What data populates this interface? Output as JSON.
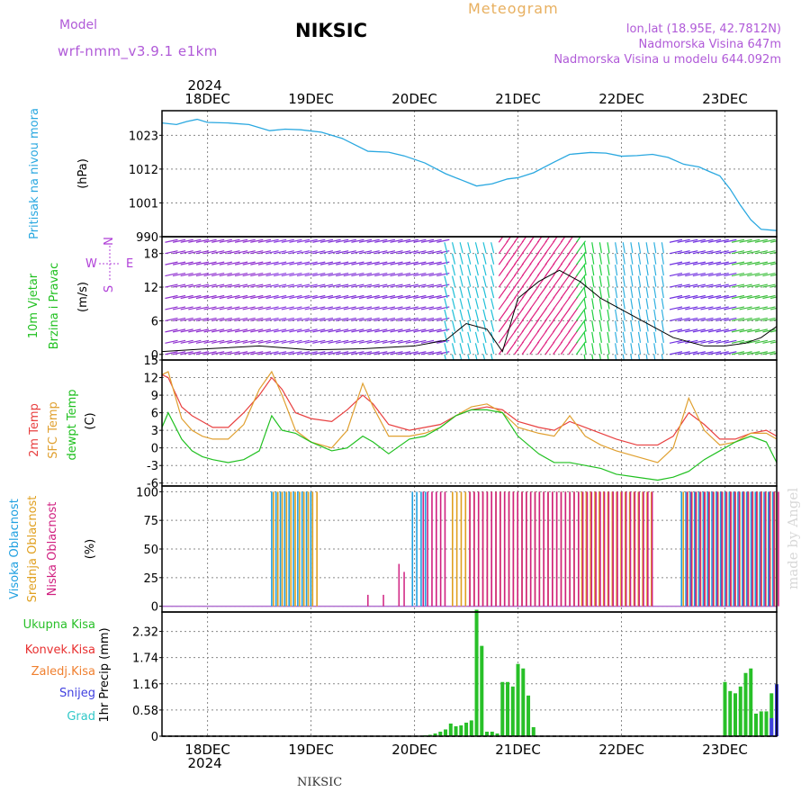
{
  "header": {
    "model_label": "Model",
    "model_name": "wrf-nmm_v3.9.1  e1km",
    "station": "NIKSIC",
    "kind": "Meteogram",
    "lonlat": "lon,lat (18.95E, 42.7812N)",
    "elevation": "Nadmorska Visina 647m",
    "elevation_model": "Nadmorska Visina u modelu 644.092m",
    "footer_station": "NIKSIC",
    "credit": "made by Angel"
  },
  "dates": {
    "year": "2024",
    "labels": [
      "18DEC",
      "19DEC",
      "20DEC",
      "21DEC",
      "22DEC",
      "23DEC"
    ]
  },
  "colors": {
    "pressure": "#2aa8e0",
    "temp2m": "#e84040",
    "sfctemp": "#e0a030",
    "dewpt": "#20c020",
    "high_cloud": "#20a0e0",
    "mid_cloud": "#e0a020",
    "low_cloud": "#d02080",
    "precip": "#28c028",
    "conv": "#e83030",
    "frz": "#f08030",
    "snow": "#4040e0",
    "grad": "#30c8c8",
    "wind_axis": "#b040d8"
  },
  "panels": {
    "pressure": {
      "l1": "Pritisak na nivou mora",
      "l2": "(hPa)"
    },
    "wind": {
      "l1": "10m Vjetar",
      "l2": "Brzina i Pravac",
      "l3": "(m/s)",
      "compass_n": "N",
      "compass_s": "S",
      "compass_e": "E",
      "compass_w": "W"
    },
    "temp": {
      "l1": "2m Temp",
      "l2": "SFC Temp",
      "l3": "dewpt Temp",
      "l4": "(C)"
    },
    "cloud": {
      "l1": "Visoka Oblacnost",
      "l2": "Srednja Oblacnost",
      "l3": "Niska  Oblacnost",
      "l4": "(%)"
    },
    "precip": {
      "l1": "Ukupna  Kisa",
      "l2": "Konvek.Kisa",
      "l3": "Zaledj.Kisa",
      "l4": "Snijeg",
      "l5": "Grad",
      "l6": "1hr Precip (mm)"
    }
  },
  "chart_data": [
    {
      "type": "line",
      "title": "Pritisak na nivou mora",
      "ylabel": "(hPa)",
      "ylim": [
        990,
        1031
      ],
      "yticks": [
        990,
        1001,
        1012,
        1023
      ],
      "xlim_days": [
        17.56,
        23.5
      ],
      "x": [
        17.56,
        17.7,
        17.8,
        17.9,
        18.0,
        18.2,
        18.4,
        18.6,
        18.75,
        18.9,
        19.1,
        19.3,
        19.55,
        19.75,
        19.9,
        20.1,
        20.3,
        20.45,
        20.6,
        20.75,
        20.9,
        21.0,
        21.15,
        21.35,
        21.5,
        21.7,
        21.85,
        22.0,
        22.15,
        22.3,
        22.45,
        22.6,
        22.75,
        22.85,
        22.95,
        23.05,
        23.15,
        23.25,
        23.35,
        23.5
      ],
      "series": [
        {
          "values": [
            1027,
            1026.5,
            1027.5,
            1028.2,
            1027.2,
            1027,
            1026.5,
            1024.5,
            1025,
            1024.8,
            1024,
            1022,
            1017.8,
            1017.5,
            1016.3,
            1014,
            1010.5,
            1008.5,
            1006.5,
            1007.2,
            1008.8,
            1009.2,
            1010.8,
            1014.3,
            1016.8,
            1017.4,
            1017.2,
            1016.2,
            1016.4,
            1016.8,
            1015.8,
            1013.6,
            1012.7,
            1011.2,
            1009.8,
            1005.5,
            1000.2,
            995.5,
            992.4,
            992
          ]
        }
      ]
    },
    {
      "type": "line",
      "title": "10m Vjetar Brzina i Pravac",
      "ylabel": "(m/s)",
      "ylim": [
        -1,
        21
      ],
      "yticks": [
        0,
        6,
        12,
        18
      ],
      "x": [
        17.56,
        18.0,
        18.5,
        19.0,
        19.5,
        20.0,
        20.3,
        20.5,
        20.7,
        20.85,
        21.0,
        21.2,
        21.4,
        21.6,
        21.8,
        22.0,
        22.2,
        22.5,
        22.8,
        23.0,
        23.2,
        23.35,
        23.5
      ],
      "series": [
        {
          "name": "speed",
          "values": [
            0.5,
            1.0,
            1.5,
            0.8,
            1.0,
            1.5,
            2.5,
            5.5,
            4.5,
            0.5,
            10,
            13,
            15,
            13,
            10,
            8,
            6,
            3,
            1.5,
            1.5,
            2.0,
            3.0,
            5.0
          ]
        }
      ],
      "barb_levels": [
        0,
        2,
        4,
        6,
        8,
        10,
        12,
        14,
        16,
        18,
        20
      ]
    },
    {
      "type": "line",
      "title": "2m Temp / SFC Temp / dewpt Temp",
      "ylabel": "(C)",
      "ylim": [
        -6.5,
        15
      ],
      "yticks": [
        -6,
        -3,
        0,
        3,
        6,
        9,
        12,
        15
      ],
      "x": [
        17.56,
        17.62,
        17.75,
        17.85,
        17.95,
        18.05,
        18.2,
        18.35,
        18.5,
        18.62,
        18.72,
        18.85,
        19.0,
        19.2,
        19.35,
        19.5,
        19.6,
        19.75,
        19.95,
        20.1,
        20.25,
        20.4,
        20.55,
        20.7,
        20.85,
        21.0,
        21.2,
        21.35,
        21.5,
        21.65,
        21.8,
        21.95,
        22.15,
        22.35,
        22.5,
        22.65,
        22.8,
        22.95,
        23.1,
        23.25,
        23.4,
        23.5
      ],
      "series": [
        {
          "name": "2m Temp",
          "values": [
            12.5,
            12,
            7,
            5.5,
            4.5,
            3.5,
            3.5,
            6,
            9,
            12,
            10,
            6,
            5,
            4.5,
            6.5,
            9,
            7.5,
            4,
            3,
            3.5,
            4,
            5.5,
            6.5,
            7,
            6.5,
            4.5,
            3.5,
            3,
            4.5,
            3.5,
            2.5,
            1.5,
            0.5,
            0.5,
            2,
            6,
            4,
            1.5,
            1.5,
            2.5,
            3,
            2
          ]
        },
        {
          "name": "SFC Temp",
          "values": [
            12.5,
            13,
            5,
            3,
            2,
            1.5,
            1.5,
            4,
            10,
            13,
            9,
            3,
            1,
            0,
            3,
            11,
            7,
            2,
            2,
            2.5,
            3.5,
            5.5,
            7,
            7.5,
            6,
            3.5,
            2.5,
            2,
            5.5,
            2,
            0.5,
            -0.5,
            -1.5,
            -2.5,
            0,
            8.5,
            3,
            0.5,
            1,
            2.5,
            2.5,
            1.5
          ]
        },
        {
          "name": "dewpt Temp",
          "values": [
            3.5,
            6,
            1.5,
            -0.5,
            -1.5,
            -2,
            -2.5,
            -2,
            -0.5,
            5.5,
            3,
            2.5,
            1,
            -0.5,
            0,
            2,
            1,
            -1,
            1.5,
            2,
            3.5,
            5.5,
            6.5,
            6.5,
            6,
            2,
            -1,
            -2.5,
            -2.5,
            -3,
            -3.5,
            -4.5,
            -5,
            -5.5,
            -5,
            -4,
            -2,
            -0.5,
            1,
            2,
            1,
            -2.5
          ]
        }
      ]
    },
    {
      "type": "bar",
      "title": "Visoka / Srednja / Niska Oblacnost",
      "ylabel": "(%)",
      "ylim": [
        -5,
        105
      ],
      "yticks": [
        0,
        25,
        50,
        75,
        100
      ],
      "series": [
        {
          "name": "Visoka Oblacnost",
          "ranges": [
            [
              18.62,
              19.0,
              100
            ],
            [
              19.98,
              20.12,
              100
            ],
            [
              22.58,
              23.5,
              100
            ]
          ]
        },
        {
          "name": "Srednja Oblacnost",
          "ranges": [
            [
              18.62,
              19.05,
              100
            ],
            [
              20.35,
              21.6,
              100
            ],
            [
              21.6,
              22.3,
              100
            ],
            [
              22.58,
              23.5,
              100
            ]
          ]
        },
        {
          "name": "Niska  Oblacnost",
          "ranges": [
            [
              20.05,
              20.3,
              100
            ],
            [
              20.5,
              21.8,
              100
            ],
            [
              21.8,
              22.3,
              100
            ],
            [
              22.6,
              23.5,
              100
            ]
          ]
        },
        {
          "name": "Niska  Oblacnost",
          "singles": [
            [
              19.55,
              10
            ],
            [
              19.7,
              10
            ],
            [
              19.85,
              37
            ],
            [
              19.9,
              30
            ]
          ]
        }
      ]
    },
    {
      "type": "bar",
      "title": "1hr Precip",
      "ylabel": "1hr Precip (mm)",
      "ylim": [
        0,
        2.75
      ],
      "yticks": [
        0,
        0.58,
        1.16,
        1.74,
        2.32
      ],
      "series": [
        {
          "name": "Ukupna  Kisa",
          "x": [
            20.1,
            20.15,
            20.2,
            20.25,
            20.3,
            20.35,
            20.4,
            20.45,
            20.5,
            20.55,
            20.6,
            20.65,
            20.7,
            20.75,
            20.8,
            20.85,
            20.9,
            20.95,
            21.0,
            21.05,
            21.1,
            21.15,
            23.0,
            23.05,
            23.1,
            23.15,
            23.2,
            23.25,
            23.3,
            23.35,
            23.4,
            23.45,
            23.5
          ],
          "values": [
            0.02,
            0.03,
            0.06,
            0.1,
            0.15,
            0.28,
            0.22,
            0.24,
            0.3,
            0.35,
            2.8,
            2.0,
            0.1,
            0.1,
            0.06,
            1.2,
            1.2,
            1.1,
            1.6,
            1.5,
            0.9,
            0.2,
            1.2,
            1.0,
            0.95,
            1.1,
            1.4,
            1.5,
            0.5,
            0.55,
            0.55,
            0.95,
            1.15
          ]
        },
        {
          "name": "Snijeg",
          "x": [
            23.45,
            23.5
          ],
          "values": [
            0.4,
            1.15
          ]
        }
      ]
    }
  ]
}
